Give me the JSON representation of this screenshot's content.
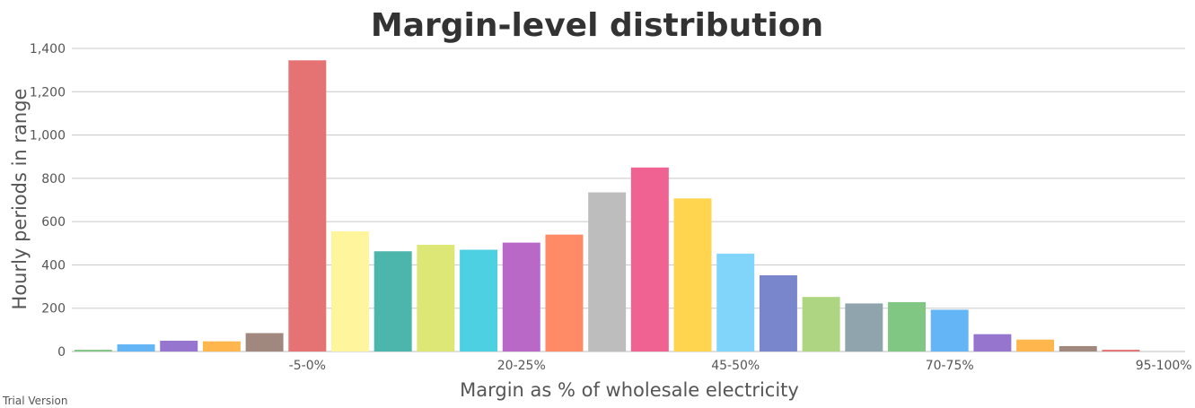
{
  "chart_data": {
    "type": "bar",
    "title": "Margin-level distribution",
    "xlabel": "Margin as % of wholesale electricity",
    "ylabel": "Hourly periods in range",
    "ylim": [
      0,
      1400
    ],
    "yticks": [
      0,
      200,
      400,
      600,
      800,
      1000,
      1200,
      1400
    ],
    "ytick_labels": [
      "0",
      "200",
      "400",
      "600",
      "800",
      "1,000",
      "1,200",
      "1,400"
    ],
    "grid": true,
    "categories": [
      "",
      "",
      "",
      "",
      "",
      "-5-0%",
      "",
      "",
      "",
      "",
      "20-25%",
      "",
      "",
      "",
      "",
      "45-50%",
      "",
      "",
      "",
      "",
      "70-75%",
      "",
      "",
      "",
      "",
      "95-100%"
    ],
    "visible_category_labels": [
      "-5-0%",
      "20-25%",
      "45-50%",
      "70-75%",
      "95-100%"
    ],
    "values": [
      8,
      33,
      50,
      47,
      85,
      1345,
      555,
      463,
      493,
      470,
      503,
      540,
      735,
      850,
      707,
      452,
      352,
      252,
      222,
      228,
      193,
      80,
      55,
      25,
      8,
      0
    ],
    "colors": [
      "#81c784",
      "#64b5f6",
      "#9575cd",
      "#ffb74d",
      "#a1887f",
      "#e57373",
      "#fff59d",
      "#4db6ac",
      "#dce775",
      "#4dd0e1",
      "#ba68c8",
      "#ff8a65",
      "#bdbdbd",
      "#f06292",
      "#ffd54f",
      "#81d4fa",
      "#7986cb",
      "#aed581",
      "#90a4ae",
      "#81c784",
      "#64b5f6",
      "#9575cd",
      "#ffb74d",
      "#a1887f",
      "#e57373",
      "#fff59d"
    ]
  },
  "watermark": "Trial Version"
}
